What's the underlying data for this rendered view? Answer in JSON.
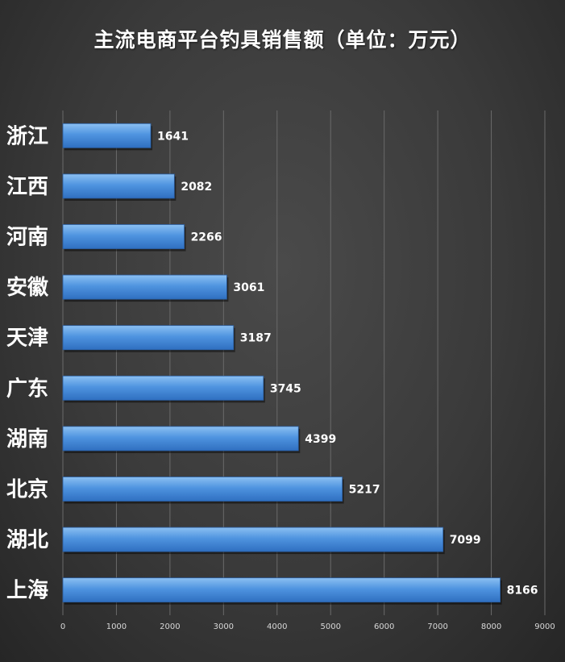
{
  "chart_data": {
    "type": "bar",
    "orientation": "horizontal",
    "title": "主流电商平台钓具销售额（单位：万元）",
    "categories": [
      "浙江",
      "江西",
      "河南",
      "安徽",
      "天津",
      "广东",
      "湖南",
      "北京",
      "湖北",
      "上海"
    ],
    "values": [
      1641,
      2082,
      2266,
      3061,
      3187,
      3745,
      4399,
      5217,
      7099,
      8166
    ],
    "xlim": [
      0,
      9000
    ],
    "xticks": [
      0,
      1000,
      2000,
      3000,
      4000,
      5000,
      6000,
      7000,
      8000,
      9000
    ],
    "xlabel": "",
    "ylabel": "",
    "grid": "vertical",
    "legend": "none",
    "bar_color": "#4a8fde",
    "background_color": "#3c3c3c"
  }
}
